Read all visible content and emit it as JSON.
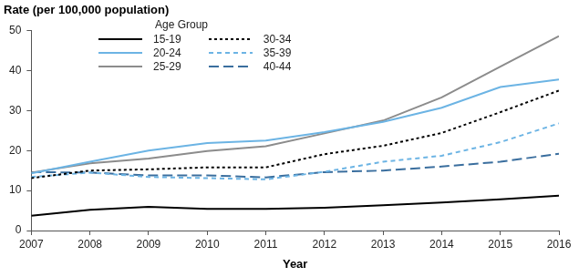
{
  "chart_data": {
    "type": "line",
    "y_label": "Rate (per 100,000 population)",
    "x_label": "Year",
    "legend_title": "Age Group",
    "legend": "upper left",
    "grid": false,
    "x": [
      2007,
      2008,
      2009,
      2010,
      2011,
      2012,
      2013,
      2014,
      2015,
      2016
    ],
    "xlim": [
      2007,
      2016
    ],
    "xticks": [
      2007,
      2008,
      2009,
      2010,
      2011,
      2012,
      2013,
      2014,
      2015,
      2016
    ],
    "ylim": [
      0,
      50
    ],
    "yticks": [
      0,
      10,
      20,
      30,
      40,
      50
    ],
    "series": [
      {
        "name": "15-19",
        "color": "#000000",
        "line_style": "solid",
        "values": [
          3.7,
          5.2,
          5.9,
          5.4,
          5.4,
          5.7,
          6.3,
          7.0,
          7.8,
          8.7
        ]
      },
      {
        "name": "20-24",
        "color": "#6cb4e4",
        "line_style": "solid",
        "values": [
          14.3,
          17.2,
          20.0,
          21.9,
          22.5,
          24.6,
          27.2,
          30.7,
          35.9,
          37.8
        ]
      },
      {
        "name": "25-29",
        "color": "#8c8c8c",
        "line_style": "solid",
        "values": [
          14.5,
          16.8,
          18.0,
          19.9,
          21.1,
          24.3,
          27.5,
          33.3,
          41.0,
          48.6
        ]
      },
      {
        "name": "30-34",
        "color": "#000000",
        "line_style": "dotted",
        "values": [
          13.1,
          15.0,
          15.3,
          15.8,
          15.8,
          19.1,
          21.2,
          24.4,
          29.6,
          35.0
        ]
      },
      {
        "name": "35-39",
        "color": "#6cb4e4",
        "line_style": "dashed",
        "values": [
          13.4,
          14.5,
          13.4,
          13.1,
          12.8,
          14.7,
          17.2,
          18.7,
          22.1,
          26.8
        ]
      },
      {
        "name": "40-44",
        "color": "#3a6e9e",
        "line_style": "long_dashed",
        "values": [
          14.6,
          14.5,
          13.8,
          13.8,
          13.3,
          14.6,
          15.0,
          16.0,
          17.2,
          19.2
        ]
      }
    ]
  }
}
